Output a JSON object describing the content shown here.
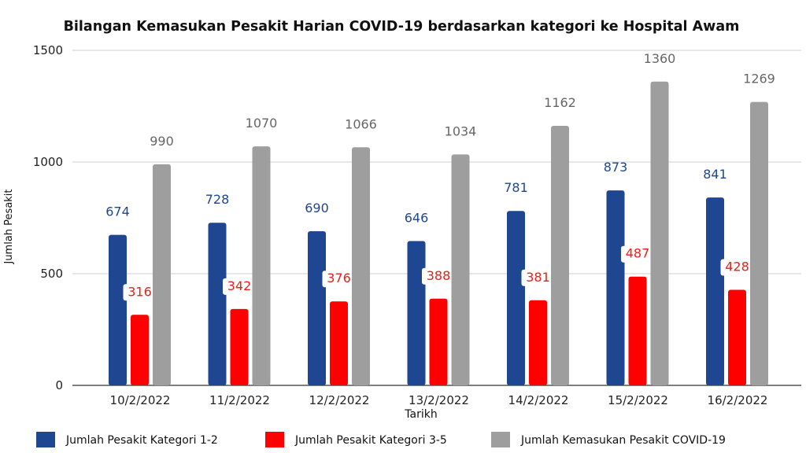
{
  "chart_data": {
    "type": "bar",
    "title": "Bilangan Kemasukan Pesakit Harian COVID-19 berdasarkan kategori  ke Hospital Awam",
    "xlabel": "Tarikh",
    "ylabel": "Jumlah Pesakit",
    "ylim": [
      0,
      1500
    ],
    "yticks": [
      0,
      500,
      1000,
      1500
    ],
    "grid": true,
    "legend_position": "bottom",
    "categories": [
      "10/2/2022",
      "11/2/2022",
      "12/2/2022",
      "13/2/2022",
      "14/2/2022",
      "15/2/2022",
      "16/2/2022"
    ],
    "series": [
      {
        "name": "Jumlah Pesakit Kategori 1-2",
        "color": "#1f4690",
        "label_color": "#1f4690",
        "values": [
          674,
          728,
          690,
          646,
          781,
          873,
          841
        ]
      },
      {
        "name": "Jumlah Pesakit Kategori 3-5",
        "color": "#ff0000",
        "label_color": "#e8201a",
        "values": [
          316,
          342,
          376,
          388,
          381,
          487,
          428
        ]
      },
      {
        "name": "Jumlah Kemasukan Pesakit COVID-19",
        "color": "#9e9e9e",
        "label_color": "#666666",
        "values": [
          990,
          1070,
          1066,
          1034,
          1162,
          1360,
          1269
        ]
      }
    ]
  }
}
